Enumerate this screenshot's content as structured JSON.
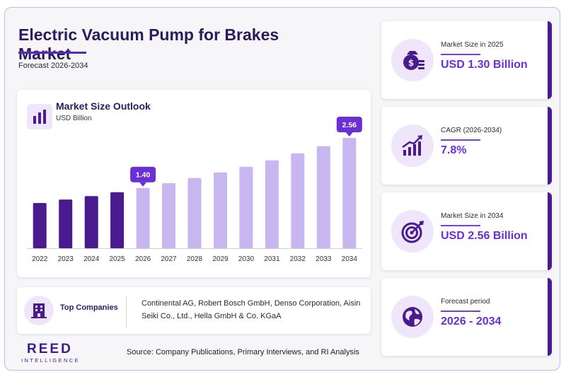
{
  "header": {
    "title": "Electric Vacuum Pump for Brakes Market",
    "subtitle": "Forecast 2026-2034"
  },
  "chart_card": {
    "title": "Market Size Outlook",
    "unit": "USD Billion"
  },
  "chart_data": {
    "type": "bar",
    "title": "Market Size Outlook",
    "ylabel": "USD Billion",
    "categories": [
      "2022",
      "2023",
      "2024",
      "2025",
      "2026",
      "2027",
      "2028",
      "2029",
      "2030",
      "2031",
      "2032",
      "2033",
      "2034"
    ],
    "values": [
      1.05,
      1.13,
      1.21,
      1.3,
      1.4,
      1.51,
      1.63,
      1.76,
      1.89,
      2.04,
      2.2,
      2.37,
      2.56
    ],
    "ylim": [
      0,
      2.56
    ],
    "historical_color": "#4a1a8f",
    "forecast_color": "#c8b6f0",
    "callouts": [
      {
        "category": "2026",
        "label": "1.40"
      },
      {
        "category": "2034",
        "label": "2.56"
      }
    ],
    "callout_color": "#6b2fd6"
  },
  "companies": {
    "label": "Top Companies",
    "text": "Continental AG, Robert Bosch GmbH, Denso Corporation, Aisin Seiki Co., Ltd., Hella GmbH & Co. KGaA",
    "icon": "building-icon"
  },
  "kpis": [
    {
      "label": "Market Size in 2025",
      "value": "USD 1.30 Billion",
      "icon": "money-bag-icon"
    },
    {
      "label": "CAGR (2026-2034)",
      "value": "7.8%",
      "icon": "growth-chart-icon"
    },
    {
      "label": "Market Size in 2034",
      "value": "USD 2.56 Billion",
      "icon": "target-icon"
    },
    {
      "label": "Forecast period",
      "value": "2026 - 2034",
      "icon": "globe-icon"
    }
  ],
  "footer": {
    "logo": "REED",
    "logo_sub": "INTELLIGENCE",
    "source": "Source: Company Publications, Primary Interviews, and RI Analysis"
  },
  "colors": {
    "accent": "#6b2fd6",
    "brand_dark": "#2c1b5e",
    "icon_bg": "#efe6fb"
  }
}
